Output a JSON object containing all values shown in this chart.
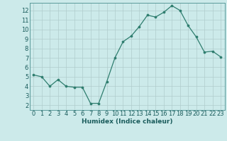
{
  "x": [
    0,
    1,
    2,
    3,
    4,
    5,
    6,
    7,
    8,
    9,
    10,
    11,
    12,
    13,
    14,
    15,
    16,
    17,
    18,
    19,
    20,
    21,
    22,
    23
  ],
  "y": [
    5.2,
    5.0,
    4.0,
    4.7,
    4.0,
    3.9,
    3.9,
    2.2,
    2.2,
    4.5,
    7.0,
    8.7,
    9.3,
    10.3,
    11.5,
    11.3,
    11.8,
    12.5,
    12.0,
    10.4,
    9.2,
    7.6,
    7.7,
    7.1
  ],
  "line_color": "#2e7d6e",
  "marker_color": "#2e7d6e",
  "bg_color": "#cceaea",
  "grid_color": "#b0cccc",
  "xlabel": "Humidex (Indice chaleur)",
  "ylim": [
    1.5,
    12.8
  ],
  "xlim": [
    -0.5,
    23.5
  ],
  "yticks": [
    2,
    3,
    4,
    5,
    6,
    7,
    8,
    9,
    10,
    11,
    12
  ],
  "xticks": [
    0,
    1,
    2,
    3,
    4,
    5,
    6,
    7,
    8,
    9,
    10,
    11,
    12,
    13,
    14,
    15,
    16,
    17,
    18,
    19,
    20,
    21,
    22,
    23
  ],
  "xlabel_color": "#1a5c5c",
  "axis_label_fontsize": 6.5,
  "tick_fontsize": 6.0,
  "spine_color": "#5a9a9a"
}
